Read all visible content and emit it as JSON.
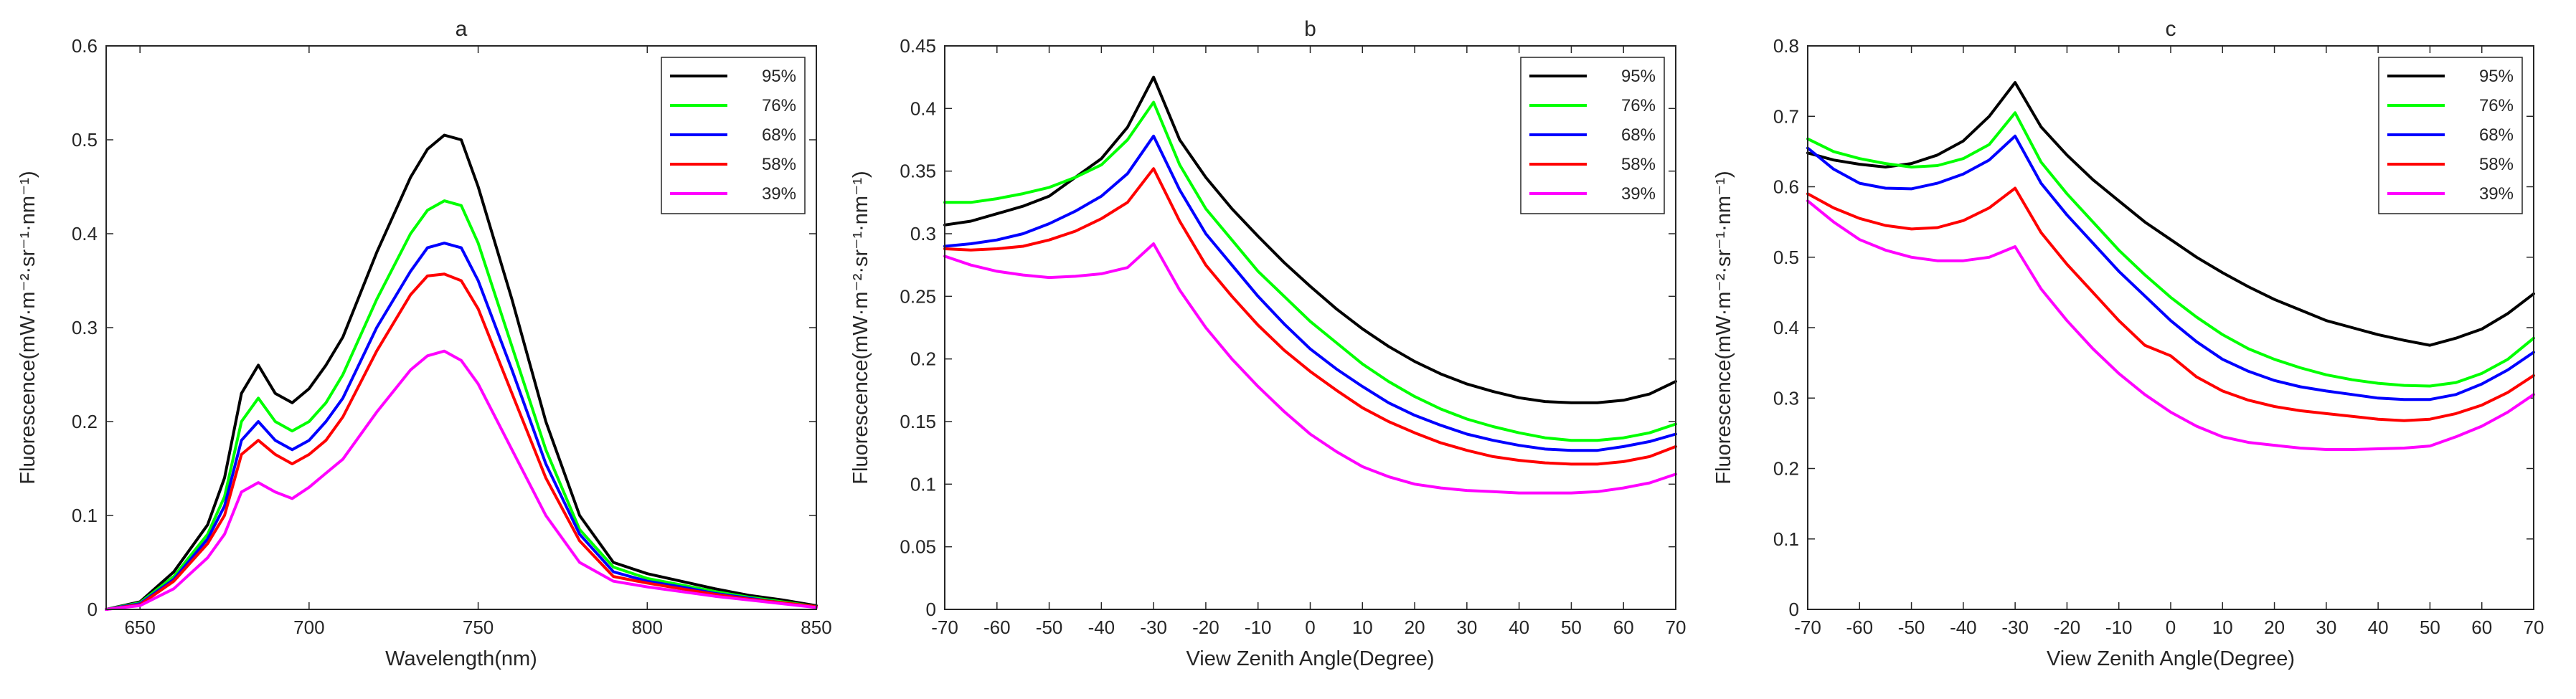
{
  "chart_data": [
    {
      "type": "line",
      "title": "a",
      "xlabel": "Wavelength(nm)",
      "ylabel": "Fluorescence(mW·m⁻²·sr⁻¹·nm⁻¹)",
      "xlim": [
        640,
        850
      ],
      "ylim": [
        0,
        0.6
      ],
      "xticks": [
        650,
        700,
        750,
        800,
        850
      ],
      "yticks": [
        0,
        0.1,
        0.2,
        0.3,
        0.4,
        0.5,
        0.6
      ],
      "legend_position": "top-right",
      "series": [
        {
          "name": "95%",
          "color": "#000000",
          "x": [
            640,
            650,
            660,
            670,
            675,
            680,
            685,
            690,
            695,
            700,
            705,
            710,
            720,
            730,
            735,
            740,
            745,
            750,
            760,
            770,
            780,
            790,
            800,
            810,
            820,
            830,
            840,
            850
          ],
          "y": [
            0,
            0.008,
            0.04,
            0.09,
            0.14,
            0.23,
            0.26,
            0.23,
            0.22,
            0.235,
            0.26,
            0.29,
            0.38,
            0.46,
            0.49,
            0.505,
            0.5,
            0.45,
            0.33,
            0.2,
            0.1,
            0.05,
            0.038,
            0.03,
            0.022,
            0.015,
            0.01,
            0.004
          ]
        },
        {
          "name": "76%",
          "color": "#00ff00",
          "x": [
            640,
            650,
            660,
            670,
            675,
            680,
            685,
            690,
            695,
            700,
            705,
            710,
            720,
            730,
            735,
            740,
            745,
            750,
            760,
            770,
            780,
            790,
            800,
            810,
            820,
            830,
            840,
            850
          ],
          "y": [
            0,
            0.007,
            0.035,
            0.08,
            0.12,
            0.2,
            0.225,
            0.2,
            0.19,
            0.2,
            0.22,
            0.25,
            0.33,
            0.4,
            0.425,
            0.435,
            0.43,
            0.39,
            0.28,
            0.17,
            0.085,
            0.045,
            0.033,
            0.026,
            0.019,
            0.013,
            0.008,
            0.003
          ]
        },
        {
          "name": "68%",
          "color": "#0000ff",
          "x": [
            640,
            650,
            660,
            670,
            675,
            680,
            685,
            690,
            695,
            700,
            705,
            710,
            720,
            730,
            735,
            740,
            745,
            750,
            760,
            770,
            780,
            790,
            800,
            810,
            820,
            830,
            840,
            850
          ],
          "y": [
            0,
            0.006,
            0.032,
            0.075,
            0.11,
            0.18,
            0.2,
            0.18,
            0.17,
            0.18,
            0.2,
            0.225,
            0.3,
            0.36,
            0.385,
            0.39,
            0.385,
            0.35,
            0.255,
            0.155,
            0.08,
            0.04,
            0.03,
            0.024,
            0.017,
            0.012,
            0.007,
            0.003
          ]
        },
        {
          "name": "58%",
          "color": "#ff0000",
          "x": [
            640,
            650,
            660,
            670,
            675,
            680,
            685,
            690,
            695,
            700,
            705,
            710,
            720,
            730,
            735,
            740,
            745,
            750,
            760,
            770,
            780,
            790,
            800,
            810,
            820,
            830,
            840,
            850
          ],
          "y": [
            0,
            0.005,
            0.03,
            0.07,
            0.1,
            0.165,
            0.18,
            0.165,
            0.155,
            0.165,
            0.18,
            0.205,
            0.275,
            0.335,
            0.355,
            0.357,
            0.35,
            0.32,
            0.23,
            0.14,
            0.073,
            0.035,
            0.028,
            0.022,
            0.016,
            0.011,
            0.007,
            0.003
          ]
        },
        {
          "name": "39%",
          "color": "#ff00ff",
          "x": [
            640,
            650,
            660,
            670,
            675,
            680,
            685,
            690,
            695,
            700,
            705,
            710,
            720,
            730,
            735,
            740,
            745,
            750,
            760,
            770,
            780,
            790,
            800,
            810,
            820,
            830,
            840,
            850
          ],
          "y": [
            0,
            0.004,
            0.022,
            0.055,
            0.08,
            0.125,
            0.135,
            0.125,
            0.118,
            0.13,
            0.145,
            0.16,
            0.21,
            0.255,
            0.27,
            0.275,
            0.265,
            0.24,
            0.17,
            0.1,
            0.05,
            0.03,
            0.024,
            0.019,
            0.014,
            0.01,
            0.006,
            0.002
          ]
        }
      ]
    },
    {
      "type": "line",
      "title": "b",
      "xlabel": "View Zenith Angle(Degree)",
      "ylabel": "Fluorescence(mW·m⁻²·sr⁻¹·nm⁻¹)",
      "xlim": [
        -70,
        70
      ],
      "ylim": [
        0,
        0.45
      ],
      "xticks": [
        -70,
        -60,
        -50,
        -40,
        -30,
        -20,
        -10,
        0,
        10,
        20,
        30,
        40,
        50,
        60,
        70
      ],
      "yticks": [
        0,
        0.05,
        0.1,
        0.15,
        0.2,
        0.25,
        0.3,
        0.35,
        0.4,
        0.45
      ],
      "legend_position": "top-right",
      "series": [
        {
          "name": "95%",
          "color": "#000000",
          "x": [
            -70,
            -65,
            -60,
            -55,
            -50,
            -45,
            -40,
            -35,
            -30,
            -25,
            -20,
            -15,
            -10,
            -5,
            0,
            5,
            10,
            15,
            20,
            25,
            30,
            35,
            40,
            45,
            50,
            55,
            60,
            65,
            70
          ],
          "y": [
            0.307,
            0.31,
            0.316,
            0.322,
            0.33,
            0.345,
            0.36,
            0.385,
            0.425,
            0.375,
            0.345,
            0.32,
            0.298,
            0.277,
            0.258,
            0.24,
            0.224,
            0.21,
            0.198,
            0.188,
            0.18,
            0.174,
            0.169,
            0.166,
            0.165,
            0.165,
            0.167,
            0.172,
            0.182
          ]
        },
        {
          "name": "76%",
          "color": "#00ff00",
          "x": [
            -70,
            -65,
            -60,
            -55,
            -50,
            -45,
            -40,
            -35,
            -30,
            -25,
            -20,
            -15,
            -10,
            -5,
            0,
            5,
            10,
            15,
            20,
            25,
            30,
            35,
            40,
            45,
            50,
            55,
            60,
            65,
            70
          ],
          "y": [
            0.325,
            0.325,
            0.328,
            0.332,
            0.337,
            0.345,
            0.355,
            0.375,
            0.405,
            0.355,
            0.32,
            0.295,
            0.27,
            0.25,
            0.23,
            0.213,
            0.196,
            0.182,
            0.17,
            0.16,
            0.152,
            0.146,
            0.141,
            0.137,
            0.135,
            0.135,
            0.137,
            0.141,
            0.148
          ]
        },
        {
          "name": "68%",
          "color": "#0000ff",
          "x": [
            -70,
            -65,
            -60,
            -55,
            -50,
            -45,
            -40,
            -35,
            -30,
            -25,
            -20,
            -15,
            -10,
            -5,
            0,
            5,
            10,
            15,
            20,
            25,
            30,
            35,
            40,
            45,
            50,
            55,
            60,
            65,
            70
          ],
          "y": [
            0.29,
            0.292,
            0.295,
            0.3,
            0.308,
            0.318,
            0.33,
            0.348,
            0.378,
            0.335,
            0.3,
            0.275,
            0.25,
            0.228,
            0.208,
            0.192,
            0.178,
            0.165,
            0.155,
            0.147,
            0.14,
            0.135,
            0.131,
            0.128,
            0.127,
            0.127,
            0.13,
            0.134,
            0.14
          ]
        },
        {
          "name": "58%",
          "color": "#ff0000",
          "x": [
            -70,
            -65,
            -60,
            -55,
            -50,
            -45,
            -40,
            -35,
            -30,
            -25,
            -20,
            -15,
            -10,
            -5,
            0,
            5,
            10,
            15,
            20,
            25,
            30,
            35,
            40,
            45,
            50,
            55,
            60,
            65,
            70
          ],
          "y": [
            0.288,
            0.287,
            0.288,
            0.29,
            0.295,
            0.302,
            0.312,
            0.325,
            0.352,
            0.31,
            0.275,
            0.25,
            0.227,
            0.207,
            0.19,
            0.175,
            0.161,
            0.15,
            0.141,
            0.133,
            0.127,
            0.122,
            0.119,
            0.117,
            0.116,
            0.116,
            0.118,
            0.122,
            0.13
          ]
        },
        {
          "name": "39%",
          "color": "#ff00ff",
          "x": [
            -70,
            -65,
            -60,
            -55,
            -50,
            -45,
            -40,
            -35,
            -30,
            -25,
            -20,
            -15,
            -10,
            -5,
            0,
            5,
            10,
            15,
            20,
            25,
            30,
            35,
            40,
            45,
            50,
            55,
            60,
            65,
            70
          ],
          "y": [
            0.282,
            0.275,
            0.27,
            0.267,
            0.265,
            0.266,
            0.268,
            0.273,
            0.292,
            0.255,
            0.225,
            0.2,
            0.178,
            0.158,
            0.14,
            0.126,
            0.114,
            0.106,
            0.1,
            0.097,
            0.095,
            0.094,
            0.093,
            0.093,
            0.093,
            0.094,
            0.097,
            0.101,
            0.108
          ]
        }
      ]
    },
    {
      "type": "line",
      "title": "c",
      "xlabel": "View Zenith Angle(Degree)",
      "ylabel": "Fluorescence(mW·m⁻²·sr⁻¹·nm⁻¹)",
      "xlim": [
        -70,
        70
      ],
      "ylim": [
        0,
        0.8
      ],
      "xticks": [
        -70,
        -60,
        -50,
        -40,
        -30,
        -20,
        -10,
        0,
        10,
        20,
        30,
        40,
        50,
        60,
        70
      ],
      "yticks": [
        0,
        0.1,
        0.2,
        0.3,
        0.4,
        0.5,
        0.6,
        0.7,
        0.8
      ],
      "legend_position": "top-right",
      "series": [
        {
          "name": "95%",
          "color": "#000000",
          "x": [
            -70,
            -65,
            -60,
            -55,
            -50,
            -45,
            -40,
            -35,
            -30,
            -25,
            -20,
            -15,
            -10,
            -5,
            0,
            5,
            10,
            15,
            20,
            25,
            30,
            35,
            40,
            45,
            50,
            55,
            60,
            65,
            70
          ],
          "y": [
            0.648,
            0.638,
            0.632,
            0.628,
            0.633,
            0.645,
            0.665,
            0.7,
            0.748,
            0.685,
            0.645,
            0.61,
            0.58,
            0.55,
            0.525,
            0.5,
            0.478,
            0.458,
            0.44,
            0.425,
            0.41,
            0.4,
            0.39,
            0.382,
            0.375,
            0.385,
            0.398,
            0.42,
            0.448
          ]
        },
        {
          "name": "76%",
          "color": "#00ff00",
          "x": [
            -70,
            -65,
            -60,
            -55,
            -50,
            -45,
            -40,
            -35,
            -30,
            -25,
            -20,
            -15,
            -10,
            -5,
            0,
            5,
            10,
            15,
            20,
            25,
            30,
            35,
            40,
            45,
            50,
            55,
            60,
            65,
            70
          ],
          "y": [
            0.668,
            0.65,
            0.64,
            0.633,
            0.628,
            0.63,
            0.64,
            0.66,
            0.705,
            0.635,
            0.59,
            0.55,
            0.51,
            0.475,
            0.443,
            0.415,
            0.39,
            0.37,
            0.355,
            0.343,
            0.333,
            0.326,
            0.321,
            0.318,
            0.317,
            0.322,
            0.335,
            0.355,
            0.385
          ]
        },
        {
          "name": "68%",
          "color": "#0000ff",
          "x": [
            -70,
            -65,
            -60,
            -55,
            -50,
            -45,
            -40,
            -35,
            -30,
            -25,
            -20,
            -15,
            -10,
            -5,
            0,
            5,
            10,
            15,
            20,
            25,
            30,
            35,
            40,
            45,
            50,
            55,
            60,
            65,
            70
          ],
          "y": [
            0.655,
            0.625,
            0.605,
            0.598,
            0.597,
            0.605,
            0.618,
            0.638,
            0.672,
            0.605,
            0.56,
            0.52,
            0.48,
            0.445,
            0.41,
            0.38,
            0.355,
            0.338,
            0.325,
            0.316,
            0.31,
            0.305,
            0.3,
            0.298,
            0.298,
            0.305,
            0.32,
            0.34,
            0.365
          ]
        },
        {
          "name": "58%",
          "color": "#ff0000",
          "x": [
            -70,
            -65,
            -60,
            -55,
            -50,
            -45,
            -40,
            -35,
            -30,
            -25,
            -20,
            -15,
            -10,
            -5,
            0,
            5,
            10,
            15,
            20,
            25,
            30,
            35,
            40,
            45,
            50,
            55,
            60,
            65,
            70
          ],
          "y": [
            0.59,
            0.57,
            0.555,
            0.545,
            0.54,
            0.542,
            0.552,
            0.57,
            0.598,
            0.535,
            0.49,
            0.45,
            0.41,
            0.375,
            0.36,
            0.33,
            0.31,
            0.297,
            0.288,
            0.282,
            0.278,
            0.274,
            0.27,
            0.268,
            0.27,
            0.278,
            0.29,
            0.308,
            0.332
          ]
        },
        {
          "name": "39%",
          "color": "#ff00ff",
          "x": [
            -70,
            -65,
            -60,
            -55,
            -50,
            -45,
            -40,
            -35,
            -30,
            -25,
            -20,
            -15,
            -10,
            -5,
            0,
            5,
            10,
            15,
            20,
            25,
            30,
            35,
            40,
            45,
            50,
            55,
            60,
            65,
            70
          ],
          "y": [
            0.58,
            0.55,
            0.525,
            0.51,
            0.5,
            0.495,
            0.495,
            0.5,
            0.515,
            0.455,
            0.41,
            0.37,
            0.335,
            0.305,
            0.28,
            0.26,
            0.245,
            0.237,
            0.233,
            0.229,
            0.227,
            0.227,
            0.228,
            0.229,
            0.232,
            0.245,
            0.26,
            0.28,
            0.305
          ]
        }
      ]
    }
  ]
}
